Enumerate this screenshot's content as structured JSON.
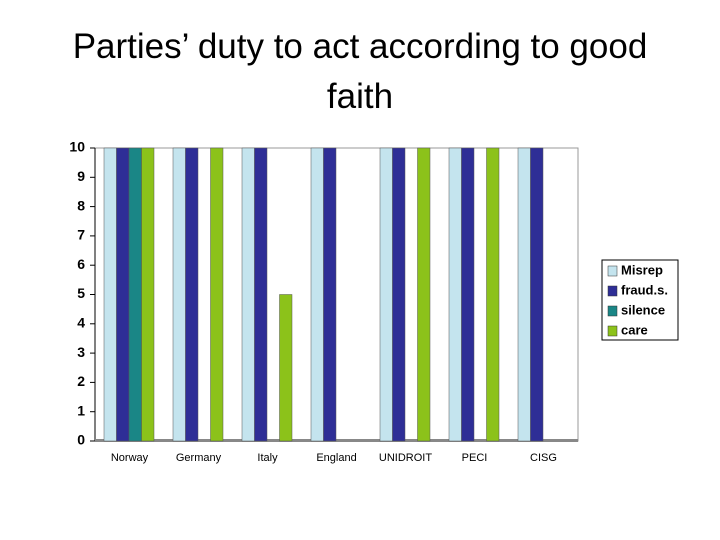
{
  "chart_data": {
    "type": "bar",
    "title": "Parties’ duty to act according to good faith",
    "categories": [
      "Norway",
      "Germany",
      "Italy",
      "England",
      "UNIDROIT",
      "PECI",
      "CISG"
    ],
    "series": [
      {
        "name": "Misrep",
        "color": "#c4e4ee",
        "values": [
          10,
          10,
          10,
          10,
          10,
          10,
          10
        ]
      },
      {
        "name": "fraud.s.",
        "color": "#2e2e96",
        "values": [
          10,
          10,
          10,
          10,
          10,
          10,
          10
        ]
      },
      {
        "name": "silence",
        "color": "#1a8686",
        "values": [
          10,
          0,
          0,
          0,
          0,
          0,
          0
        ]
      },
      {
        "name": "care",
        "color": "#8cc21a",
        "values": [
          10,
          10,
          5,
          0,
          10,
          10,
          0
        ]
      }
    ],
    "ylim": [
      0,
      10
    ],
    "yticks": [
      0,
      1,
      2,
      3,
      4,
      5,
      6,
      7,
      8,
      9,
      10
    ],
    "grid": false,
    "legend": "right"
  }
}
